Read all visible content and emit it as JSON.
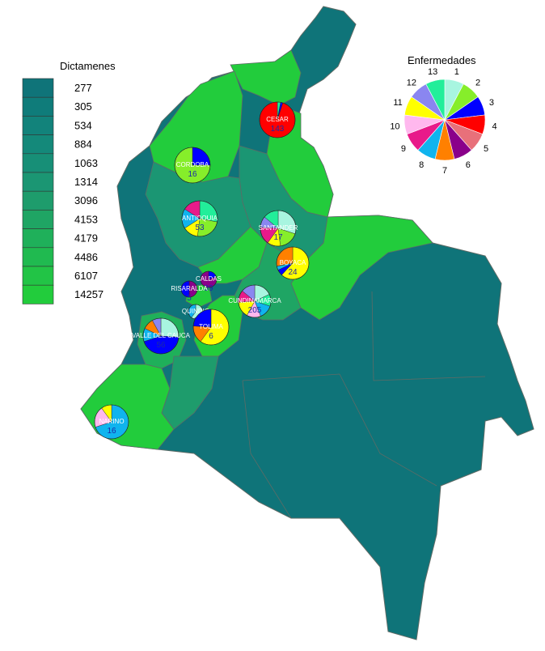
{
  "legend": {
    "title": "Dictamenes",
    "values": [
      "277",
      "305",
      "534",
      "884",
      "1063",
      "1314",
      "3096",
      "4153",
      "4179",
      "4486",
      "6107",
      "14257"
    ],
    "colors": [
      "#0f7479",
      "#0f7c7a",
      "#12837b",
      "#14897a",
      "#178f77",
      "#1b9673",
      "#1e9c6c",
      "#1fa564",
      "#1fb05a",
      "#20ba50",
      "#22c446",
      "#22cc3c"
    ]
  },
  "key": {
    "title": "Enfermedades",
    "numbers": [
      "1",
      "2",
      "3",
      "4",
      "5",
      "6",
      "7",
      "8",
      "9",
      "10",
      "11",
      "12",
      "13"
    ],
    "colors": [
      "#a8f5e0",
      "#86ee2a",
      "#0000ff",
      "#ff0000",
      "#e8707a",
      "#8a008a",
      "#ff8000",
      "#10b4ee",
      "#e81a8a",
      "#ffb8ee",
      "#ffff00",
      "#8a86f0",
      "#22ee9a"
    ]
  },
  "region_colors": {
    "dark": "#0f7479",
    "mid": "#1a9a6e",
    "light": "#22cc3c",
    "border": "#5e6b66"
  },
  "departments": [
    {
      "name": "CESAR",
      "count": "143",
      "slices": [
        0.03,
        0.02,
        0.95
      ],
      "slice_keys": [
        13,
        3,
        4
      ]
    },
    {
      "name": "CORDOBA",
      "count": "16",
      "slices": [
        0.25,
        0.75
      ],
      "slice_keys": [
        3,
        2
      ]
    },
    {
      "name": "ANTIOQUIA",
      "count": "53",
      "slices": [
        0.28,
        0.24,
        0.14,
        0.18,
        0.16
      ],
      "slice_keys": [
        13,
        2,
        11,
        8,
        9
      ]
    },
    {
      "name": "SANTANDER",
      "count": "17",
      "slices": [
        0.3,
        0.18,
        0.12,
        0.16,
        0.1,
        0.14
      ],
      "slice_keys": [
        1,
        2,
        11,
        9,
        12,
        13
      ]
    },
    {
      "name": "BOYACA",
      "count": "24",
      "slices": [
        0.62,
        0.06,
        0.04,
        0.28
      ],
      "slice_keys": [
        11,
        3,
        8,
        7
      ]
    },
    {
      "name": "CALDAS",
      "count": "39",
      "slices": [
        0.2,
        0.8
      ],
      "slice_keys": [
        3,
        6
      ]
    },
    {
      "name": "RISARALDA",
      "count": "5",
      "slices": [
        0.5,
        0.5
      ],
      "slice_keys": [
        6,
        3
      ]
    },
    {
      "name": "CUNDINAMARCA",
      "count": "205",
      "slices": [
        0.18,
        0.12,
        0.14,
        0.14,
        0.16,
        0.12,
        0.14
      ],
      "slice_keys": [
        1,
        13,
        8,
        10,
        11,
        9,
        12
      ]
    },
    {
      "name": "QUINDIO",
      "count": "1",
      "slices": [
        0.6,
        0.4
      ],
      "slice_keys": [
        1,
        8
      ]
    },
    {
      "name": "TOLIMA",
      "count": "6",
      "slices": [
        0.6,
        0.16,
        0.24
      ],
      "slice_keys": [
        11,
        7,
        3
      ]
    },
    {
      "name": "VALLE DEL CAUCA",
      "count": "56",
      "slices": [
        0.26,
        0.44,
        0.12,
        0.1,
        0.08
      ],
      "slice_keys": [
        1,
        3,
        8,
        7,
        12
      ]
    },
    {
      "name": "NARINO",
      "count": "16",
      "slices": [
        0.7,
        0.2,
        0.1
      ],
      "slice_keys": [
        8,
        10,
        11
      ]
    }
  ]
}
